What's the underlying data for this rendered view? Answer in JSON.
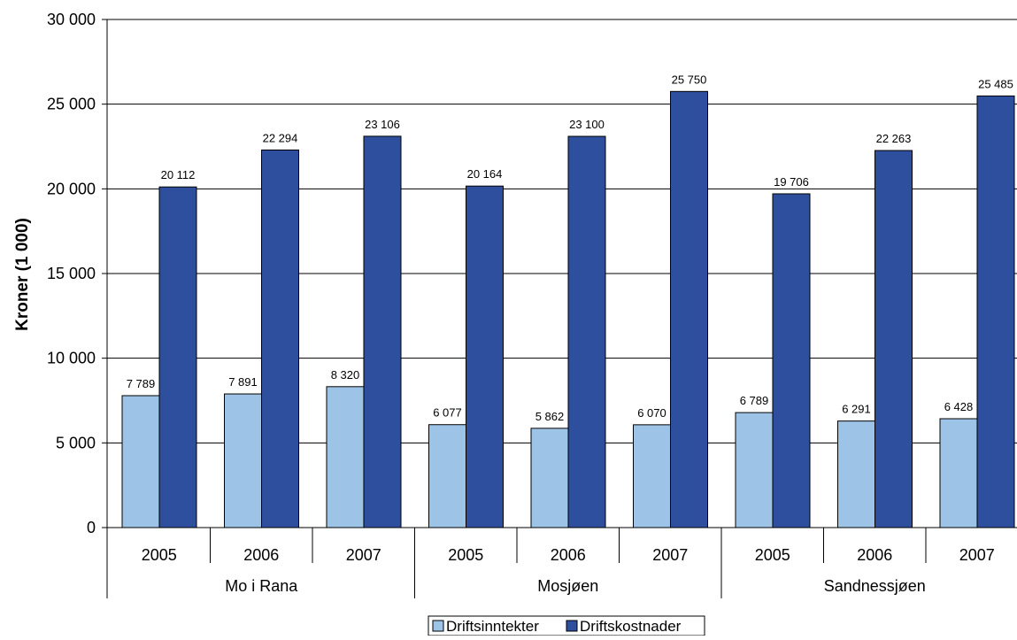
{
  "chart_data": {
    "type": "bar",
    "ylabel": "Kroner (1 000)",
    "ylim": [
      0,
      30000
    ],
    "yticks": [
      0,
      5000,
      10000,
      15000,
      20000,
      25000,
      30000
    ],
    "ytick_labels": [
      "0",
      "5 000",
      "10 000",
      "15 000",
      "20 000",
      "25 000",
      "30 000"
    ],
    "grid": true,
    "legend_position": "bottom",
    "groups": [
      {
        "label": "Mo i Rana",
        "categories": [
          "2005",
          "2006",
          "2007"
        ]
      },
      {
        "label": "Mosjøen",
        "categories": [
          "2005",
          "2006",
          "2007"
        ]
      },
      {
        "label": "Sandnessjøen",
        "categories": [
          "2005",
          "2006",
          "2007"
        ]
      }
    ],
    "series": [
      {
        "name": "Driftsinntekter",
        "color": "#9DC3E6",
        "values": [
          7789,
          7891,
          8320,
          6077,
          5862,
          6070,
          6789,
          6291,
          6428
        ],
        "labels": [
          "7 789",
          "7 891",
          "8 320",
          "6 077",
          "5 862",
          "6 070",
          "6 789",
          "6 291",
          "6 428"
        ]
      },
      {
        "name": "Driftskostnader",
        "color": "#2E4E9E",
        "values": [
          20112,
          22294,
          23106,
          20164,
          23100,
          25750,
          19706,
          22263,
          25485
        ],
        "labels": [
          "20 112",
          "22 294",
          "23 106",
          "20 164",
          "23 100",
          "25 750",
          "19 706",
          "22 263",
          "25 485"
        ]
      }
    ]
  }
}
